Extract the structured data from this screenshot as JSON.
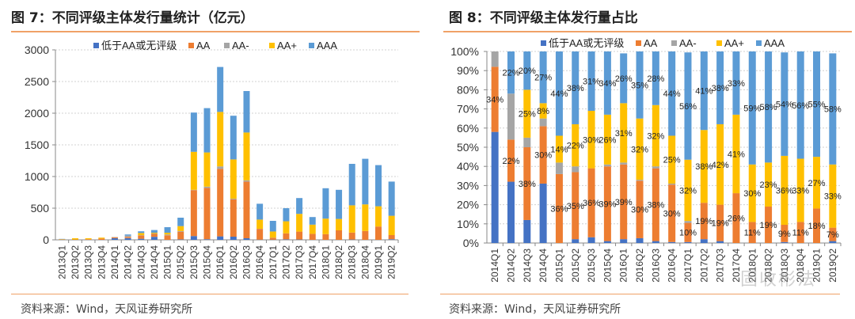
{
  "colors": {
    "low": "#4472C4",
    "AA": "#ED7D31",
    "AAm": "#A5A5A5",
    "AAp": "#FFC000",
    "AAA": "#5B9BD5"
  },
  "left": {
    "title": "图 7：不同评级主体发行量统计（亿元）",
    "source": "资料来源：Wind，天风证券研究所"
  },
  "right": {
    "title": "图 8：不同评级主体发行量占比",
    "source": "资料来源：Wind，天风证券研究所"
  },
  "watermark": "固收彬法",
  "chart_data": [
    {
      "type": "bar",
      "stacked": true,
      "title": "不同评级主体发行量统计（亿元）",
      "ylim": [
        0,
        3000
      ],
      "yticks": [
        "0",
        "500",
        "1000",
        "1500",
        "2000",
        "2500",
        "3000"
      ],
      "legend_position": "top",
      "categories": [
        "2013Q1",
        "2013Q2",
        "2013Q3",
        "2013Q4",
        "2014Q1",
        "2014Q2",
        "2014Q3",
        "2014Q4",
        "2015Q1",
        "2015Q2",
        "2015Q3",
        "2015Q4",
        "2016Q1",
        "2016Q2",
        "2016Q3",
        "2016Q4",
        "2017Q1",
        "2017Q2",
        "2017Q3",
        "2017Q4",
        "2018Q1",
        "2018Q2",
        "2018Q3",
        "2018Q4",
        "2019Q1",
        "2019Q2"
      ],
      "series": [
        {
          "name": "低于AA或无评级",
          "key": "low",
          "values": [
            0,
            0,
            0,
            0,
            26,
            27,
            17,
            48,
            0,
            7,
            60,
            10,
            55,
            50,
            25,
            3,
            2,
            8,
            5,
            0,
            0,
            0,
            5,
            0,
            0,
            10
          ]
        },
        {
          "name": "AA",
          "key": "AA",
          "values": [
            5,
            5,
            10,
            20,
            15,
            19,
            51,
            46,
            72,
            122,
            725,
            810,
            1065,
            590,
            895,
            170,
            30,
            95,
            125,
            95,
            90,
            150,
            110,
            140,
            210,
            65
          ]
        },
        {
          "name": "AA-",
          "key": "AAm",
          "values": [
            0,
            0,
            0,
            0,
            4,
            20,
            6,
            6,
            12,
            10,
            5,
            20,
            40,
            10,
            20,
            2,
            3,
            0,
            0,
            0,
            0,
            0,
            0,
            0,
            0,
            0
          ]
        },
        {
          "name": "AA+",
          "key": "AAp",
          "values": [
            5,
            20,
            15,
            15,
            0,
            0,
            34,
            12,
            28,
            78,
            600,
            540,
            860,
            620,
            755,
            145,
            97,
            190,
            280,
            145,
            245,
            180,
            430,
            420,
            320,
            305
          ]
        },
        {
          "name": "AAA",
          "key": "AAA",
          "values": [
            5,
            0,
            0,
            0,
            0,
            19,
            27,
            43,
            88,
            133,
            620,
            700,
            710,
            690,
            655,
            250,
            168,
            207,
            250,
            120,
            480,
            460,
            655,
            720,
            650,
            540
          ]
        }
      ]
    },
    {
      "type": "bar",
      "stacked": true,
      "title": "不同评级主体发行量占比",
      "ylim": [
        0,
        100
      ],
      "yticks": [
        "0%",
        "10%",
        "20%",
        "30%",
        "40%",
        "50%",
        "60%",
        "70%",
        "80%",
        "90%",
        "100%"
      ],
      "legend_position": "top",
      "categories": [
        "2014Q1",
        "2014Q2",
        "2014Q3",
        "2014Q4",
        "2015Q1",
        "2015Q2",
        "2015Q3",
        "2015Q4",
        "2016Q1",
        "2016Q2",
        "2016Q3",
        "2016Q4",
        "2017Q1",
        "2017Q2",
        "2017Q3",
        "2017Q4",
        "2018Q1",
        "2018Q2",
        "2018Q3",
        "2018Q4",
        "2019Q1",
        "2019Q2"
      ],
      "series": [
        {
          "name": "低于AA或无评级",
          "key": "low",
          "values": [
            58,
            32,
            12,
            31,
            0,
            2,
            3,
            1,
            2,
            2.5,
            1,
            0.5,
            0.5,
            2,
            1,
            0,
            0,
            0,
            0.5,
            0,
            0,
            1
          ],
          "labels": [
            null,
            null,
            null,
            null,
            null,
            null,
            null,
            null,
            null,
            null,
            null,
            null,
            null,
            null,
            null,
            null,
            null,
            null,
            null,
            null,
            null,
            null
          ]
        },
        {
          "name": "AA",
          "key": "AA",
          "values": [
            34,
            22,
            38,
            30,
            36,
            35,
            36,
            39,
            39,
            30,
            38,
            30,
            10,
            19,
            19,
            26,
            11,
            19,
            9,
            11,
            18,
            7
          ],
          "labels": [
            "34%",
            "22%",
            "38%",
            "30%",
            "36%",
            "35%",
            "36%",
            "39%",
            "39%",
            "30%",
            "38%",
            "30%",
            "10%",
            "19%",
            "19%",
            "26%",
            "11%",
            "19%",
            "9%",
            "11%",
            "18%",
            "7%"
          ]
        },
        {
          "name": "AA-",
          "key": "AAm",
          "values": [
            8,
            24,
            5,
            4,
            6,
            3,
            0,
            1,
            1,
            0.5,
            1,
            0.5,
            1,
            0,
            0,
            0,
            0,
            0,
            0,
            0,
            0,
            0
          ],
          "labels": [
            null,
            null,
            null,
            null,
            null,
            null,
            null,
            null,
            null,
            null,
            null,
            null,
            null,
            null,
            null,
            null,
            null,
            null,
            null,
            null,
            null,
            null
          ]
        },
        {
          "name": "AA+",
          "key": "AAp",
          "values": [
            0,
            0,
            25,
            8,
            14,
            22,
            30,
            26,
            31,
            32,
            32,
            25,
            32,
            38,
            42,
            41,
            30,
            23,
            36,
            33,
            27,
            33
          ],
          "labels": [
            null,
            null,
            "25%",
            "8%",
            "14%",
            "22%",
            "30%",
            "26%",
            "31%",
            "32%",
            "32%",
            "25%",
            "32%",
            "38%",
            "42%",
            "41%",
            "30%",
            "23%",
            "36%",
            "33%",
            "27%",
            "33%"
          ]
        },
        {
          "name": "AAA",
          "key": "AAA",
          "values": [
            0,
            22,
            20,
            27,
            44,
            38,
            31,
            34,
            26,
            35,
            28,
            44,
            56,
            41,
            38,
            33,
            59,
            58,
            54,
            56,
            55,
            58
          ],
          "labels": [
            null,
            "22%",
            "20%",
            "27%",
            "44%",
            "38%",
            "31%",
            "34%",
            "26%",
            "35%",
            "28%",
            "44%",
            "56%",
            "41%",
            "38%",
            "33%",
            "59%",
            "58%",
            "54%",
            "56%",
            "55%",
            "58%"
          ]
        }
      ]
    }
  ]
}
